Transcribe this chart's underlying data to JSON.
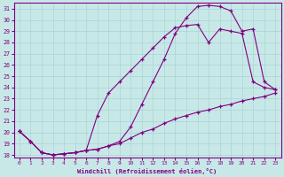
{
  "xlabel": "Windchill (Refroidissement éolien,°C)",
  "bg_color": "#c8e8e8",
  "line_color": "#800080",
  "grid_color": "#a8d4d4",
  "xlim": [
    -0.5,
    23.5
  ],
  "ylim": [
    17.8,
    31.5
  ],
  "xticks": [
    0,
    1,
    2,
    3,
    4,
    5,
    6,
    7,
    8,
    9,
    10,
    11,
    12,
    13,
    14,
    15,
    16,
    17,
    18,
    19,
    20,
    21,
    22,
    23
  ],
  "yticks": [
    18,
    19,
    20,
    21,
    22,
    23,
    24,
    25,
    26,
    27,
    28,
    29,
    30,
    31
  ],
  "curve1_x": [
    0,
    1,
    2,
    3,
    4,
    5,
    6,
    7,
    8,
    9,
    10,
    11,
    12,
    13,
    14,
    15,
    16,
    17,
    18,
    19,
    20,
    21,
    22,
    23
  ],
  "curve1_y": [
    20.1,
    19.2,
    18.2,
    18.0,
    18.1,
    18.2,
    18.4,
    18.5,
    18.8,
    19.2,
    20.5,
    22.5,
    24.5,
    26.5,
    28.8,
    30.2,
    31.2,
    31.3,
    31.2,
    30.8,
    29.0,
    29.2,
    24.5,
    23.8
  ],
  "curve2_x": [
    0,
    1,
    2,
    3,
    4,
    5,
    6,
    7,
    8,
    9,
    10,
    11,
    12,
    13,
    14,
    15,
    16,
    17,
    18,
    19,
    20,
    21,
    22,
    23
  ],
  "curve2_y": [
    20.1,
    19.2,
    18.2,
    18.0,
    18.1,
    18.2,
    18.4,
    21.5,
    23.5,
    24.5,
    25.5,
    26.5,
    27.5,
    28.5,
    29.3,
    29.5,
    29.6,
    28.0,
    29.2,
    29.0,
    28.8,
    24.5,
    24.0,
    23.8
  ],
  "curve3_x": [
    0,
    1,
    2,
    3,
    4,
    5,
    6,
    7,
    8,
    9,
    10,
    11,
    12,
    13,
    14,
    15,
    16,
    17,
    18,
    19,
    20,
    21,
    22,
    23
  ],
  "curve3_y": [
    20.1,
    19.2,
    18.2,
    18.0,
    18.1,
    18.2,
    18.4,
    18.5,
    18.8,
    19.0,
    19.5,
    20.0,
    20.3,
    20.8,
    21.2,
    21.5,
    21.8,
    22.0,
    22.3,
    22.5,
    22.8,
    23.0,
    23.2,
    23.5
  ]
}
